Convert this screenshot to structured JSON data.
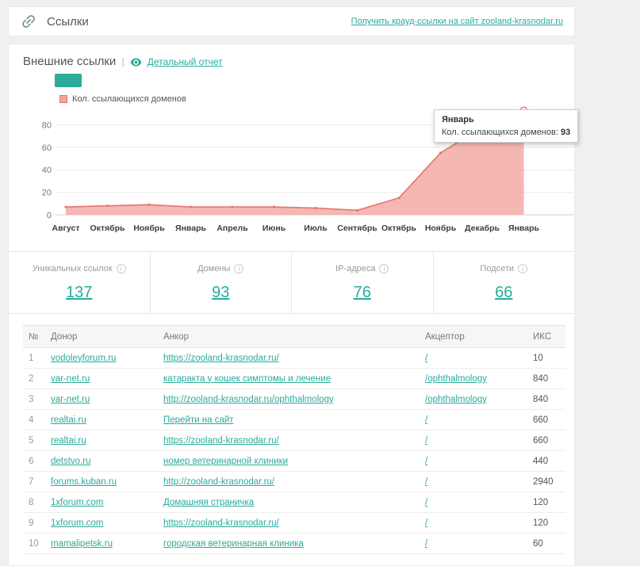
{
  "header": {
    "title": "Ссылки",
    "crowd_link": "Получить крауд-ссылки на сайт zooland-krasnodar.ru"
  },
  "section": {
    "title": "Внешние ссылки",
    "divider": "|",
    "report_link": "Детальный отчет"
  },
  "chart_data": {
    "type": "area",
    "legend": [
      "Кол. ссылающихся доменов"
    ],
    "categories": [
      "Август",
      "Октябрь",
      "Ноябрь",
      "Январь",
      "Апрель",
      "Июнь",
      "Июль",
      "Сентябрь",
      "Октябрь",
      "Ноябрь",
      "Декабрь",
      "Январь"
    ],
    "values": [
      7,
      8,
      9,
      7,
      7,
      7,
      6,
      4,
      15,
      55,
      78,
      93
    ],
    "yticks": [
      0,
      20,
      40,
      60,
      80
    ],
    "ylim": [
      0,
      100
    ],
    "grid": "horizontal",
    "line_color": "#e4766f",
    "fill_color": "#f2a59e",
    "tooltip": {
      "title": "Январь",
      "label": "Кол. ссылающихся доменов:",
      "value": "93"
    }
  },
  "stats": [
    {
      "label": "Уникальных ссылок",
      "value": "137"
    },
    {
      "label": "Домены",
      "value": "93"
    },
    {
      "label": "IP-адреса",
      "value": "76"
    },
    {
      "label": "Подсети",
      "value": "66"
    }
  ],
  "table": {
    "headers": [
      "№",
      "Донор",
      "Анкор",
      "Акцептор",
      "ИКС"
    ],
    "rows": [
      {
        "num": "1",
        "donor": "vodoleyforum.ru",
        "anchor": "https://zooland-krasnodar.ru/",
        "acceptor": "/",
        "iks": "10"
      },
      {
        "num": "2",
        "donor": "var-net.ru",
        "anchor": "катаракта у кошек симптомы и лечение",
        "acceptor": "/ophthalmology",
        "iks": "840"
      },
      {
        "num": "3",
        "donor": "var-net.ru",
        "anchor": "http://zooland-krasnodar.ru/ophthalmology",
        "acceptor": "/ophthalmology",
        "iks": "840"
      },
      {
        "num": "4",
        "donor": "realtai.ru",
        "anchor": "Перейти на сайт",
        "acceptor": "/",
        "iks": "660"
      },
      {
        "num": "5",
        "donor": "realtai.ru",
        "anchor": "https://zooland-krasnodar.ru/",
        "acceptor": "/",
        "iks": "660"
      },
      {
        "num": "6",
        "donor": "detstvo.ru",
        "anchor": "номер ветеринарной клиники",
        "acceptor": "/",
        "iks": "440"
      },
      {
        "num": "7",
        "donor": "forums.kuban.ru",
        "anchor": "http://zooland-krasnodar.ru/",
        "acceptor": "/",
        "iks": "2940"
      },
      {
        "num": "8",
        "donor": "1xforum.com",
        "anchor": "Домашняя страничка",
        "acceptor": "/",
        "iks": "120"
      },
      {
        "num": "9",
        "donor": "1xforum.com",
        "anchor": "https://zooland-krasnodar.ru/",
        "acceptor": "/",
        "iks": "120"
      },
      {
        "num": "10",
        "donor": "mamalipetsk.ru",
        "anchor": "городская ветеринарная клиника",
        "acceptor": "/",
        "iks": "60"
      }
    ]
  },
  "colors": {
    "accent": "#2aab9b",
    "chart_line": "#e4766f",
    "chart_fill": "#f2a59e"
  }
}
